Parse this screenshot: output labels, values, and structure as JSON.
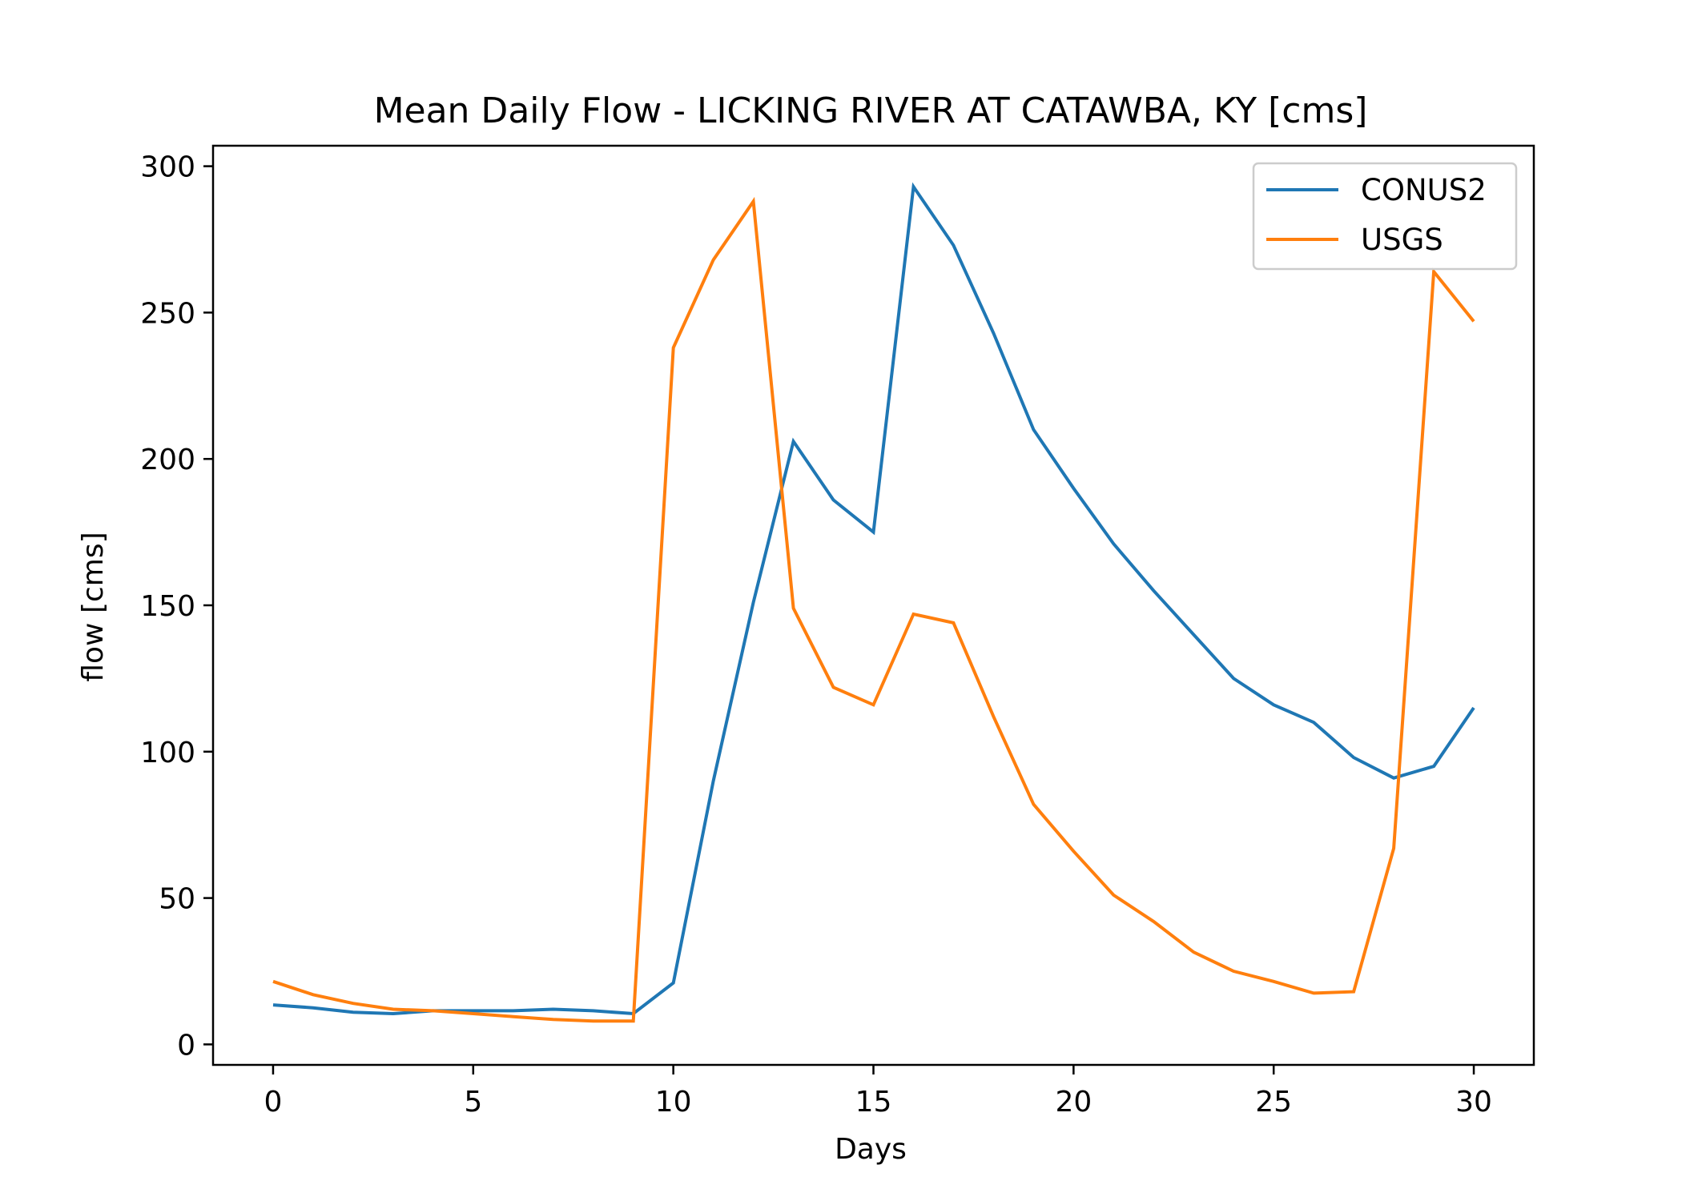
{
  "chart_data": {
    "type": "line",
    "title": "Mean Daily Flow - LICKING RIVER AT CATAWBA, KY [cms]",
    "xlabel": "Days",
    "ylabel": "flow [cms]",
    "xlim": [
      -1.5,
      31.5
    ],
    "ylim": [
      -7,
      307
    ],
    "xticks": [
      0,
      5,
      10,
      15,
      20,
      25,
      30
    ],
    "yticks": [
      0,
      50,
      100,
      150,
      200,
      250,
      300
    ],
    "grid": false,
    "legend": "top-right",
    "x": [
      0,
      1,
      2,
      3,
      4,
      5,
      6,
      7,
      8,
      9,
      10,
      11,
      12,
      13,
      14,
      15,
      16,
      17,
      18,
      19,
      20,
      21,
      22,
      23,
      24,
      25,
      26,
      27,
      28,
      29,
      30
    ],
    "series": [
      {
        "name": "CONUS2",
        "color": "#1f77b4",
        "values": [
          13.5,
          12.5,
          11,
          10.5,
          11.5,
          11.5,
          11.5,
          12,
          11.5,
          10.5,
          21,
          90,
          151,
          206,
          186,
          175,
          293,
          273,
          243,
          210,
          190,
          171,
          155,
          140,
          125,
          116,
          110,
          98,
          91,
          95,
          115
        ]
      },
      {
        "name": "USGS",
        "color": "#ff7f0e",
        "values": [
          21.5,
          17,
          14,
          12,
          11.5,
          10.5,
          9.5,
          8.5,
          8,
          8,
          238,
          268,
          288,
          149,
          122,
          116,
          147,
          144,
          112,
          82,
          66,
          51,
          42,
          31.5,
          25,
          21.5,
          17.5,
          18,
          67,
          264,
          247
        ]
      }
    ]
  }
}
